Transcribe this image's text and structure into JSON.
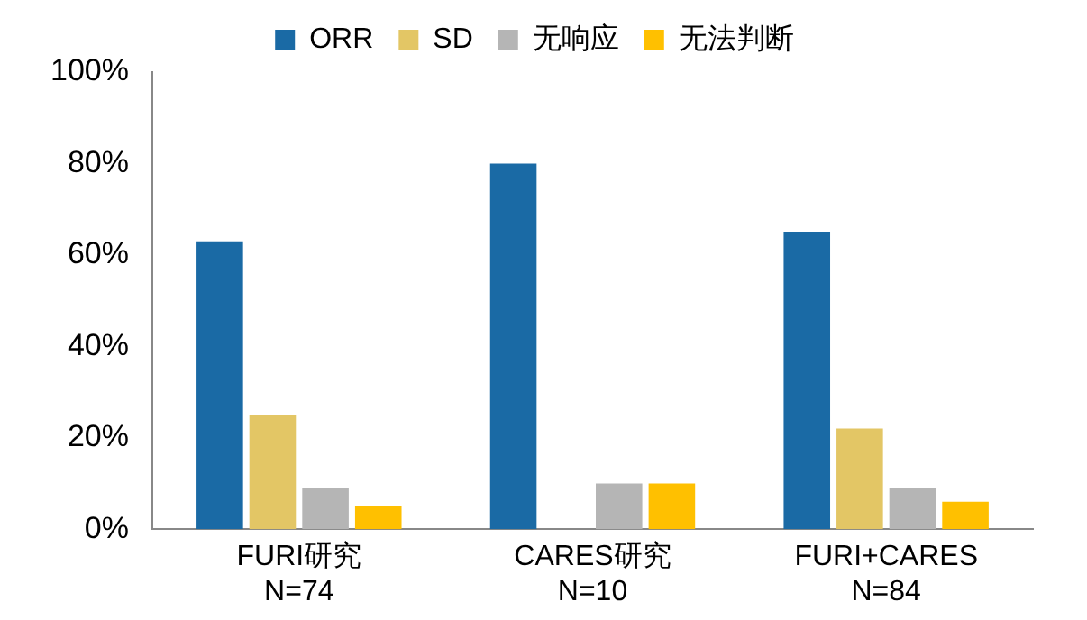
{
  "chart_data": {
    "type": "bar",
    "categories": [
      "FURI研究\nN=74",
      "CARES研究\nN=10",
      "FURI+CARES\nN=84"
    ],
    "series": [
      {
        "name": "ORR",
        "color": "#1a6aa5",
        "values": [
          63,
          80,
          65
        ]
      },
      {
        "name": "SD",
        "color": "#e3c665",
        "values": [
          25,
          0,
          22
        ]
      },
      {
        "name": "无响应",
        "color": "#b5b5b5",
        "values": [
          9,
          10,
          9
        ]
      },
      {
        "name": "无法判断",
        "color": "#ffc000",
        "values": [
          5,
          10,
          6
        ]
      }
    ],
    "ylim": [
      0,
      100
    ],
    "yticks": [
      {
        "value": 0,
        "label": "0%"
      },
      {
        "value": 20,
        "label": "20%"
      },
      {
        "value": 40,
        "label": "40%"
      },
      {
        "value": 60,
        "label": "60%"
      },
      {
        "value": 80,
        "label": "80%"
      },
      {
        "value": 100,
        "label": "100%"
      }
    ],
    "grid": false,
    "legend": "top"
  }
}
